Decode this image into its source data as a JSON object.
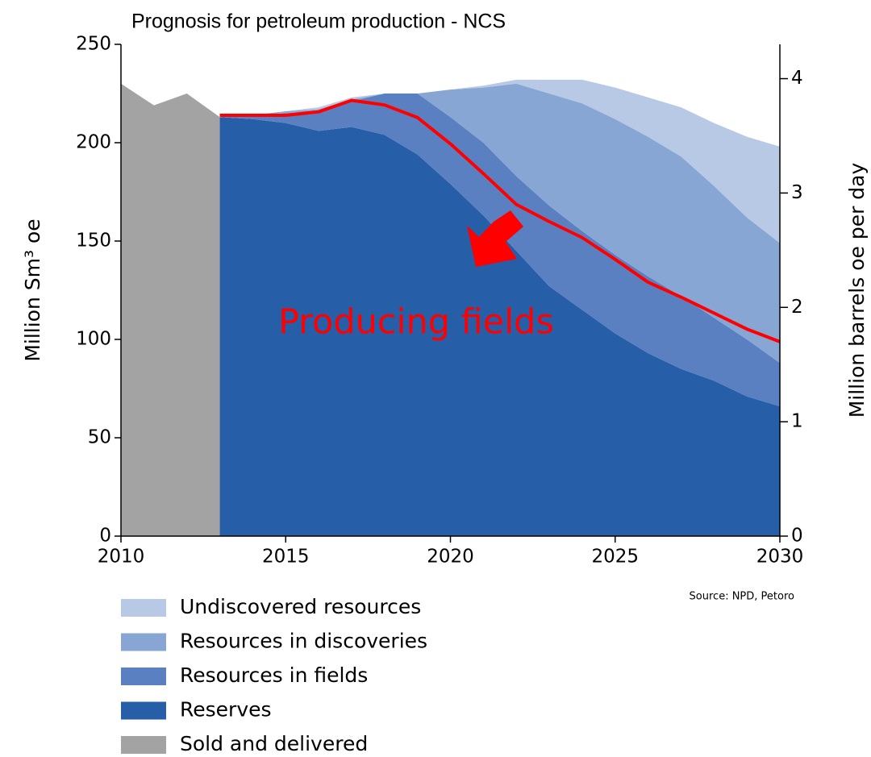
{
  "chart_data": {
    "type": "area",
    "title": "Prognosis for petroleum production  - NCS",
    "y_label": "Million Sm³ oe",
    "y2_label": "Million barrels oe per day",
    "annotation": "Producing fields",
    "source": "Source: NPD, Petoro",
    "stacked": true,
    "x": [
      2013,
      2014,
      2015,
      2016,
      2017,
      2018,
      2019,
      2020,
      2021,
      2022,
      2023,
      2024,
      2025,
      2026,
      2027,
      2028,
      2029,
      2030
    ],
    "series": [
      {
        "name": "Undiscovered resources",
        "color": "#b7c9e5",
        "values": [
          0,
          0,
          0,
          1,
          1,
          0,
          0,
          0,
          1,
          2,
          7,
          12,
          16,
          20,
          25,
          32,
          41,
          49
        ]
      },
      {
        "name": "Resources in discoveries",
        "color": "#88a6d3",
        "values": [
          0,
          0,
          1,
          1,
          1,
          0,
          0,
          14,
          28,
          47,
          57,
          65,
          69,
          71,
          71,
          67,
          62,
          61
        ]
      },
      {
        "name": "Resources in fields",
        "color": "#5a80c2",
        "values": [
          0,
          2,
          5,
          10,
          13,
          21,
          31,
          34,
          37,
          38,
          41,
          40,
          40,
          39,
          37,
          32,
          29,
          22
        ]
      },
      {
        "name": "Reserves",
        "color": "#265ea8",
        "values": [
          213,
          212,
          210,
          206,
          208,
          204,
          194,
          179,
          163,
          145,
          127,
          115,
          103,
          93,
          85,
          79,
          71,
          66
        ]
      },
      {
        "name": "Sold and delivered",
        "color": "#a3a3a3",
        "x": [
          2010,
          2011,
          2012,
          2013
        ],
        "values": [
          230,
          219,
          225,
          213
        ]
      }
    ],
    "line": {
      "type": "line",
      "color": "#ff0000",
      "axis": "y2",
      "values": [
        3.68,
        3.68,
        3.68,
        3.71,
        3.81,
        3.77,
        3.66,
        3.43,
        3.17,
        2.9,
        2.75,
        2.61,
        2.42,
        2.22,
        2.09,
        1.95,
        1.81,
        1.7
      ]
    },
    "xlim": [
      2010,
      2030
    ],
    "xticks": [
      2010,
      2015,
      2020,
      2025,
      2030
    ],
    "ylim": [
      0,
      250
    ],
    "yticks": [
      0,
      50,
      100,
      150,
      200,
      250
    ],
    "y2lim": [
      0,
      4.3
    ],
    "y2ticks": [
      0,
      1,
      2,
      3,
      4
    ],
    "grid": false
  }
}
